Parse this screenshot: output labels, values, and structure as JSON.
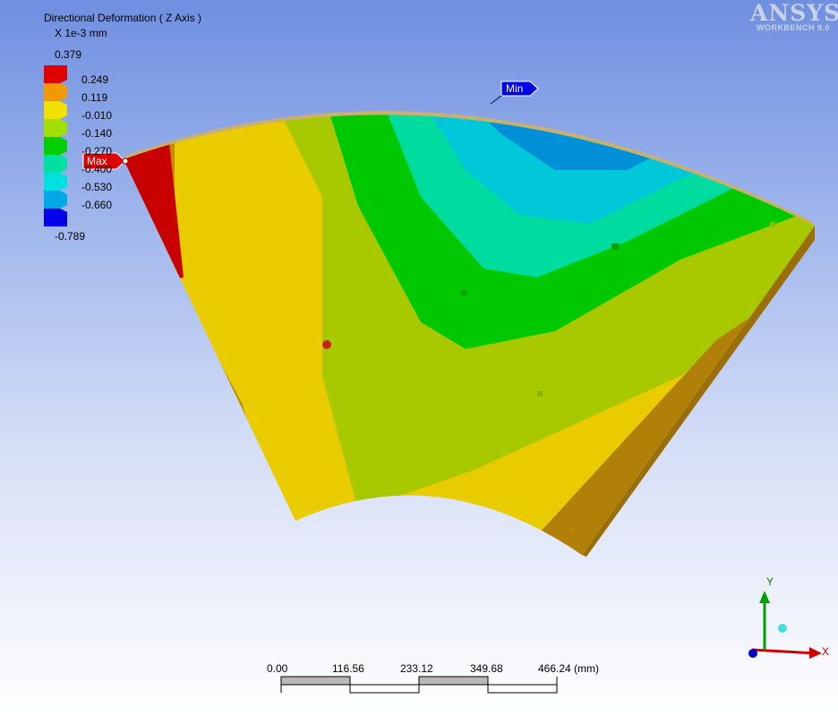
{
  "result": {
    "title": "Directional Deformation ( Z Axis )",
    "unit": "X 1e-3 mm"
  },
  "legend": {
    "max_value": "0.379",
    "min_value": "-0.789",
    "levels": [
      "0.249",
      "0.119",
      "-0.010",
      "-0.140",
      "-0.270",
      "-0.400",
      "-0.530",
      "-0.660"
    ],
    "colors": [
      "#e00000",
      "#f09a00",
      "#f0e000",
      "#a0e000",
      "#00d000",
      "#00e0a0",
      "#00e0e0",
      "#00a8e8",
      "#0000e8"
    ]
  },
  "probes": {
    "max_label": "Max",
    "min_label": "Min",
    "max_color": "#e00000",
    "min_color": "#0000e8"
  },
  "brand": {
    "name": "ANSYS",
    "product": "WORKBENCH 9.0"
  },
  "scale_bar": {
    "ticks": [
      "0.00",
      "116.56",
      "233.12",
      "349.68",
      "466.24 (mm)"
    ]
  },
  "triad": {
    "x_label": "X",
    "y_label": "Y",
    "x_color": "#d00000",
    "y_color": "#00a000",
    "z_color": "#0000c0"
  }
}
